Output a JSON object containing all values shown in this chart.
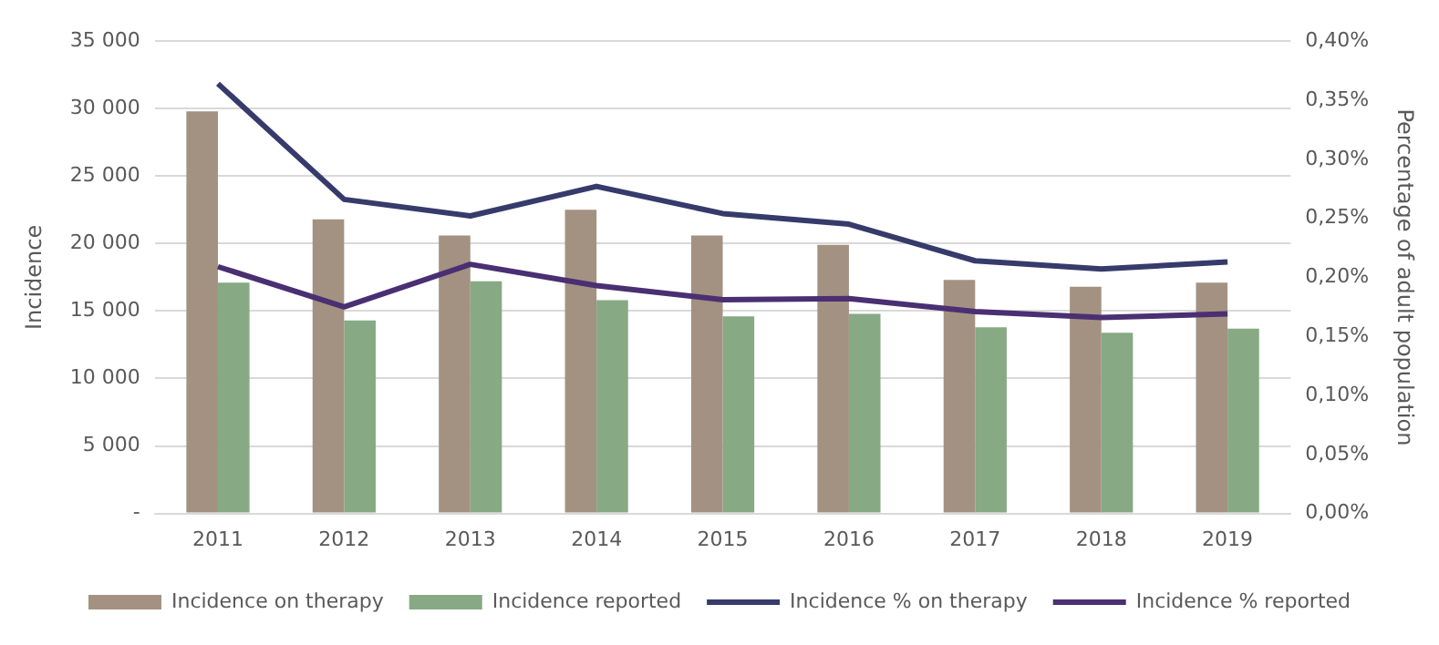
{
  "chart_data": {
    "type": "bar",
    "ylabel": "Incidence",
    "y2label": "Percentage of adult population",
    "categories": [
      "2011",
      "2012",
      "2013",
      "2014",
      "2015",
      "2016",
      "2017",
      "2018",
      "2019"
    ],
    "series": [
      {
        "name": "Incidence on therapy",
        "color": "#a39282",
        "values": [
          29800,
          21800,
          20600,
          22500,
          20600,
          19900,
          17300,
          16800,
          17100
        ]
      },
      {
        "name": "Incidence reported",
        "color": "#87a984",
        "values": [
          17100,
          14300,
          17200,
          15800,
          14600,
          14800,
          13800,
          13400,
          13700
        ]
      },
      {
        "name": "Incidence % on therapy",
        "type": "line",
        "axis": "y2",
        "color": "#363b6b",
        "values": [
          0.364,
          0.266,
          0.252,
          0.277,
          0.254,
          0.245,
          0.214,
          0.207,
          0.213
        ]
      },
      {
        "name": "Incidence % reported",
        "type": "line",
        "axis": "y2",
        "color": "#4a2f72",
        "values": [
          0.209,
          0.175,
          0.211,
          0.193,
          0.181,
          0.182,
          0.171,
          0.166,
          0.169
        ]
      }
    ],
    "ylim": [
      0,
      35000
    ],
    "yticks": [
      {
        "value": 0,
        "label": "-"
      },
      {
        "value": 5000,
        "label": "5 000"
      },
      {
        "value": 10000,
        "label": "10 000"
      },
      {
        "value": 15000,
        "label": "15 000"
      },
      {
        "value": 20000,
        "label": "20 000"
      },
      {
        "value": 25000,
        "label": "25 000"
      },
      {
        "value": 30000,
        "label": "30 000"
      },
      {
        "value": 35000,
        "label": "35 000"
      }
    ],
    "y2lim": [
      0,
      0.4
    ],
    "y2ticks": [
      {
        "value": 0,
        "label": "0,00%"
      },
      {
        "value": 0.05,
        "label": "0,05%"
      },
      {
        "value": 0.1,
        "label": "0,10%"
      },
      {
        "value": 0.15,
        "label": "0,15%"
      },
      {
        "value": 0.2,
        "label": "0,20%"
      },
      {
        "value": 0.25,
        "label": "0,25%"
      },
      {
        "value": 0.3,
        "label": "0,30%"
      },
      {
        "value": 0.35,
        "label": "0,35%"
      },
      {
        "value": 0.4,
        "label": "0,40%"
      }
    ],
    "grid": "y",
    "legend": "bottom",
    "marker": "none",
    "line_style": "solid"
  }
}
